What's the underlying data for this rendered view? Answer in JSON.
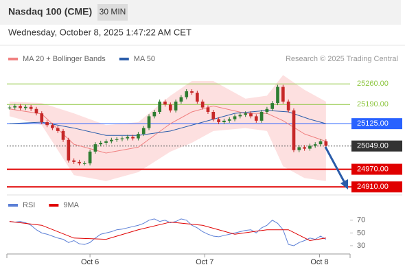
{
  "header": {
    "title": "Nasdaq 100 (CME)",
    "interval": "30 MIN",
    "datetime": "Wednesday, October 8, 2025 1:47:22 AM CET",
    "credit": "Research © 2025 Trading Central"
  },
  "chart_data": [
    {
      "type": "candlestick",
      "up_color": "#2e7d32",
      "down_color": "#c62828",
      "values": [
        25180,
        25185,
        25178,
        25182,
        25175,
        25160,
        25130,
        25120,
        25110,
        25100,
        25070,
        25000,
        24995,
        24990,
        24990,
        25030,
        25055,
        25060,
        25065,
        25070,
        25072,
        25075,
        25080,
        25075,
        25090,
        25110,
        25150,
        25165,
        25200,
        25190,
        25170,
        25200,
        25215,
        25235,
        25230,
        25200,
        25180,
        25165,
        25140,
        25130,
        25135,
        25140,
        25150,
        25155,
        25160,
        25150,
        25135,
        25165,
        25175,
        25195,
        25250,
        25200,
        25170,
        25035,
        25045,
        25040,
        25050,
        25055,
        25065,
        25050
      ],
      "xlim": [
        -0.5,
        63.5
      ],
      "ylim": [
        24885,
        25340
      ],
      "series": [
        {
          "name": "MA 20 + Bollinger Bands",
          "color": "#f08080",
          "band_color": "#fde0e0",
          "x": [
            0,
            6,
            12,
            18,
            24,
            30,
            34,
            38,
            44,
            48,
            51,
            55,
            59
          ],
          "values": [
            25175,
            25158,
            25055,
            25025,
            25045,
            25125,
            25165,
            25185,
            25160,
            25160,
            25135,
            25090,
            25065
          ],
          "upper": [
            25200,
            25195,
            25160,
            25120,
            25130,
            25220,
            25270,
            25270,
            25210,
            25220,
            25290,
            25240,
            25200
          ],
          "lower": [
            25150,
            25120,
            24950,
            24930,
            24960,
            25030,
            25060,
            25100,
            25110,
            25100,
            24980,
            24940,
            24930
          ]
        },
        {
          "name": "MA 50",
          "color": "#2a5caa",
          "x": [
            0,
            6,
            12,
            18,
            24,
            30,
            36,
            42,
            48,
            52,
            56,
            59
          ],
          "values": [
            25125,
            25130,
            25110,
            25085,
            25085,
            25100,
            25130,
            25160,
            25170,
            25165,
            25140,
            25125
          ]
        }
      ],
      "levels": [
        {
          "value": 25260,
          "label": "25260.00",
          "color": "#8dc63f",
          "style": "line"
        },
        {
          "value": 25190,
          "label": "25190.00",
          "color": "#8dc63f",
          "style": "line"
        },
        {
          "value": 25125,
          "label": "25125.00",
          "color": "#2962ff",
          "style": "box"
        },
        {
          "value": 25049,
          "label": "25049.00",
          "color": "#333333",
          "style": "dotted"
        },
        {
          "value": 24970,
          "label": "24970.00",
          "color": "#e00000",
          "style": "box"
        },
        {
          "value": 24910,
          "label": "24910.00",
          "color": "#e00000",
          "style": "box"
        }
      ]
    },
    {
      "type": "line",
      "xlim": [
        -0.5,
        63.5
      ],
      "ylim": [
        17,
        87
      ],
      "yticks": [
        70,
        50,
        30
      ],
      "xticks": [
        {
          "value": 15,
          "label": "Oct 6"
        },
        {
          "value": 36.4,
          "label": "Oct 7"
        },
        {
          "value": 57.8,
          "label": "Oct 8"
        }
      ],
      "series": [
        {
          "name": "RSI",
          "color": "#5b7fd6",
          "values": [
            68,
            67,
            68,
            66,
            62,
            55,
            50,
            48,
            45,
            42,
            40,
            35,
            38,
            33,
            32,
            35,
            42,
            48,
            50,
            52,
            55,
            56,
            58,
            60,
            62,
            65,
            70,
            72,
            68,
            70,
            66,
            68,
            72,
            70,
            62,
            58,
            52,
            48,
            45,
            44,
            46,
            48,
            50,
            52,
            54,
            55,
            50,
            58,
            62,
            70,
            65,
            55,
            32,
            30,
            35,
            38,
            42,
            40,
            45,
            40
          ]
        },
        {
          "name": "9MA",
          "color": "#e00000",
          "x": [
            0,
            6,
            12,
            18,
            24,
            30,
            36,
            42,
            48,
            52,
            56,
            59
          ],
          "values": [
            68,
            62,
            42,
            40,
            55,
            67,
            62,
            48,
            55,
            55,
            38,
            42
          ]
        }
      ]
    }
  ]
}
